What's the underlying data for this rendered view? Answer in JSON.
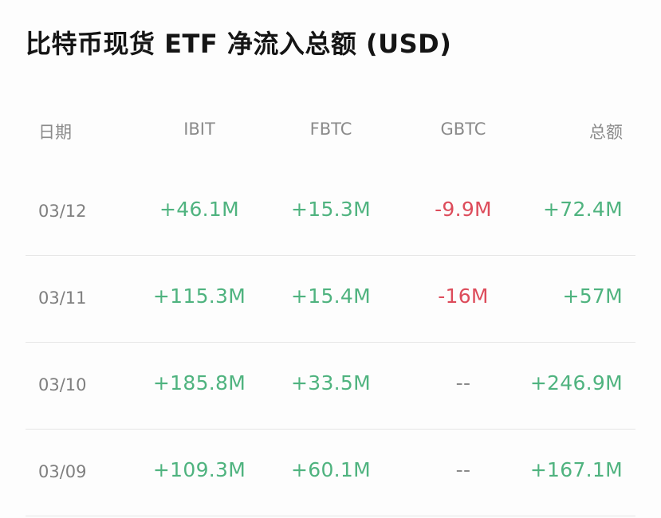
{
  "title": "比特币现货 ETF 净流入总额 (USD)",
  "colors": {
    "positive": "#4fb37f",
    "negative": "#dd4c5b",
    "muted": "#8a8a8a"
  },
  "columns": [
    "日期",
    "IBIT",
    "FBTC",
    "GBTC",
    "总额"
  ],
  "rows": [
    {
      "date": "03/12",
      "ibit": "+46.1M",
      "fbtc": "+15.3M",
      "gbtc": "-9.9M",
      "total": "+72.4M"
    },
    {
      "date": "03/11",
      "ibit": "+115.3M",
      "fbtc": "+15.4M",
      "gbtc": "-16M",
      "total": "+57M"
    },
    {
      "date": "03/10",
      "ibit": "+185.8M",
      "fbtc": "+33.5M",
      "gbtc": "--",
      "total": "+246.9M"
    },
    {
      "date": "03/09",
      "ibit": "+109.3M",
      "fbtc": "+60.1M",
      "gbtc": "--",
      "total": "+167.1M"
    }
  ]
}
